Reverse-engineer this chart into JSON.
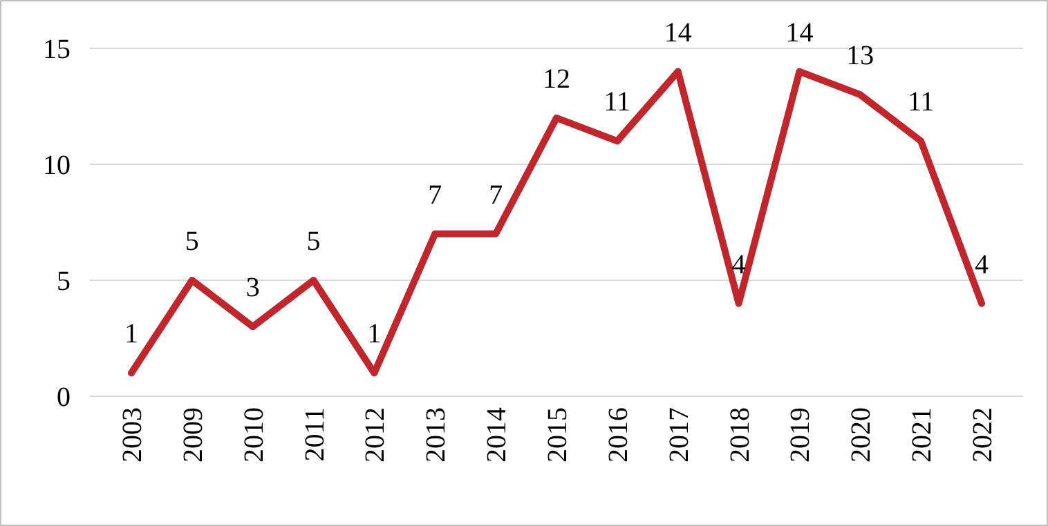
{
  "chart_data": {
    "type": "line",
    "categories": [
      "2003",
      "2009",
      "2010",
      "2011",
      "2012",
      "2013",
      "2014",
      "2015",
      "2016",
      "2017",
      "2018",
      "2019",
      "2020",
      "2021",
      "2022"
    ],
    "series": [
      {
        "color": "#c0272d",
        "values": [
          1,
          5,
          3,
          5,
          1,
          7,
          7,
          12,
          11,
          14,
          4,
          14,
          13,
          11,
          4
        ]
      }
    ],
    "ylim": [
      0,
      15
    ],
    "yticks": [
      0,
      5,
      10,
      15
    ],
    "grid": "y",
    "data_labels": true,
    "marker": "none",
    "line_style": "solid"
  }
}
